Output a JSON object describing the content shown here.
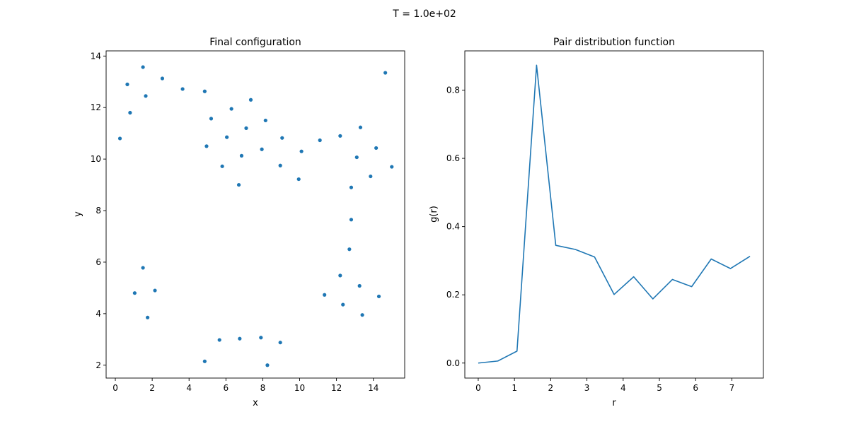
{
  "suptitle": "T = 1.0e+02",
  "colors": {
    "series": "#1f77b4",
    "axes": "#000000"
  },
  "chart_data": [
    {
      "type": "scatter",
      "title": "Final configuration",
      "xlabel": "x",
      "ylabel": "y",
      "xlim": [
        -0.5,
        15.7
      ],
      "ylim": [
        1.5,
        14.2
      ],
      "xticks": [
        0,
        2,
        4,
        6,
        8,
        10,
        12,
        14
      ],
      "yticks": [
        2,
        4,
        6,
        8,
        10,
        12,
        14
      ],
      "grid": false,
      "points": [
        [
          0.25,
          10.8
        ],
        [
          0.65,
          12.9
        ],
        [
          0.8,
          11.8
        ],
        [
          1.5,
          13.57
        ],
        [
          1.65,
          12.45
        ],
        [
          2.55,
          13.13
        ],
        [
          3.65,
          12.72
        ],
        [
          4.85,
          12.63
        ],
        [
          4.95,
          10.5
        ],
        [
          5.2,
          11.57
        ],
        [
          5.8,
          9.72
        ],
        [
          6.05,
          10.85
        ],
        [
          6.3,
          11.95
        ],
        [
          6.7,
          9.0
        ],
        [
          6.85,
          10.13
        ],
        [
          7.1,
          11.2
        ],
        [
          7.35,
          12.3
        ],
        [
          7.95,
          10.38
        ],
        [
          8.15,
          11.5
        ],
        [
          8.95,
          9.75
        ],
        [
          9.05,
          10.82
        ],
        [
          9.95,
          9.22
        ],
        [
          10.1,
          10.3
        ],
        [
          11.1,
          10.73
        ],
        [
          12.2,
          10.9
        ],
        [
          12.8,
          8.9
        ],
        [
          13.1,
          10.07
        ],
        [
          13.3,
          11.23
        ],
        [
          13.85,
          9.33
        ],
        [
          14.15,
          10.43
        ],
        [
          14.65,
          13.35
        ],
        [
          15.0,
          9.7
        ],
        [
          12.8,
          7.65
        ],
        [
          12.7,
          6.5
        ],
        [
          12.2,
          5.48
        ],
        [
          13.25,
          5.08
        ],
        [
          11.35,
          4.73
        ],
        [
          12.35,
          4.35
        ],
        [
          13.4,
          3.95
        ],
        [
          14.3,
          4.67
        ],
        [
          1.5,
          5.78
        ],
        [
          1.05,
          4.8
        ],
        [
          2.15,
          4.9
        ],
        [
          1.75,
          3.85
        ],
        [
          4.85,
          2.15
        ],
        [
          5.65,
          2.98
        ],
        [
          6.75,
          3.03
        ],
        [
          7.9,
          3.07
        ],
        [
          8.95,
          2.88
        ],
        [
          8.25,
          2.0
        ]
      ]
    },
    {
      "type": "line",
      "title": "Pair distribution function",
      "xlabel": "r",
      "ylabel": "g(r)",
      "xlim": [
        -0.37,
        7.87
      ],
      "ylim": [
        -0.044,
        0.915
      ],
      "xticks": [
        0,
        1,
        2,
        3,
        4,
        5,
        6,
        7
      ],
      "yticks": [
        0.0,
        0.2,
        0.4,
        0.6,
        0.8
      ],
      "yticklabels": [
        "0.0",
        "0.2",
        "0.4",
        "0.6",
        "0.8"
      ],
      "grid": false,
      "x": [
        0.0,
        0.54,
        1.07,
        1.61,
        2.14,
        2.68,
        3.21,
        3.75,
        4.29,
        4.82,
        5.36,
        5.89,
        6.43,
        6.96,
        7.5
      ],
      "y": [
        0.0,
        0.006,
        0.035,
        0.873,
        0.345,
        0.333,
        0.311,
        0.201,
        0.253,
        0.188,
        0.245,
        0.224,
        0.305,
        0.277,
        0.313
      ]
    }
  ]
}
